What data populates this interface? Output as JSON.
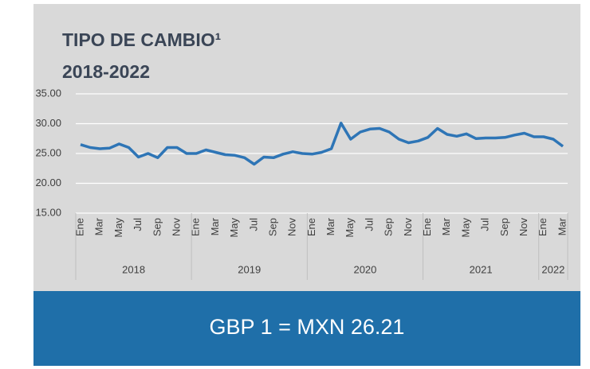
{
  "chart_data": {
    "type": "line",
    "title": "TIPO DE CAMBIO¹",
    "subtitle": "2018-2022",
    "categories": [
      "Ene",
      null,
      "Mar",
      null,
      "May",
      null,
      "Jul",
      null,
      "Sep",
      null,
      "Nov",
      null,
      "Ene",
      null,
      "Mar",
      null,
      "May",
      null,
      "Jul",
      null,
      "Sep",
      null,
      "Nov",
      null,
      "Ene",
      null,
      "Mar",
      null,
      "May",
      null,
      "Jul",
      null,
      "Sep",
      null,
      "Nov",
      null,
      "Ene",
      null,
      "Mar",
      null,
      "May",
      null,
      "Jul",
      null,
      "Sep",
      null,
      "Nov",
      null,
      "Ene",
      null,
      "Mar"
    ],
    "years": [
      "2018",
      "2019",
      "2020",
      "2021",
      "2022"
    ],
    "values": [
      26.5,
      26.0,
      25.8,
      25.9,
      26.6,
      26.0,
      24.4,
      25.0,
      24.3,
      26.0,
      26.0,
      25.0,
      25.0,
      25.6,
      25.2,
      24.8,
      24.7,
      24.3,
      23.2,
      24.4,
      24.3,
      24.9,
      25.3,
      25.0,
      24.9,
      25.2,
      25.8,
      30.1,
      27.4,
      28.6,
      29.1,
      29.2,
      28.6,
      27.4,
      26.8,
      27.1,
      27.7,
      29.2,
      28.2,
      27.9,
      28.3,
      27.5,
      27.6,
      27.6,
      27.7,
      28.1,
      28.4,
      27.8,
      27.8,
      27.4,
      26.2
    ],
    "color": "#2e75b6",
    "ylim": [
      15,
      35
    ],
    "yticks": [
      {
        "value": 15,
        "label": "15.00"
      },
      {
        "value": 20,
        "label": "20.00"
      },
      {
        "value": 25,
        "label": "25.00"
      },
      {
        "value": 30,
        "label": "30.00"
      },
      {
        "value": 35,
        "label": "35.00"
      }
    ],
    "grid": true
  },
  "banner": "GBP 1 = MXN 26.21"
}
